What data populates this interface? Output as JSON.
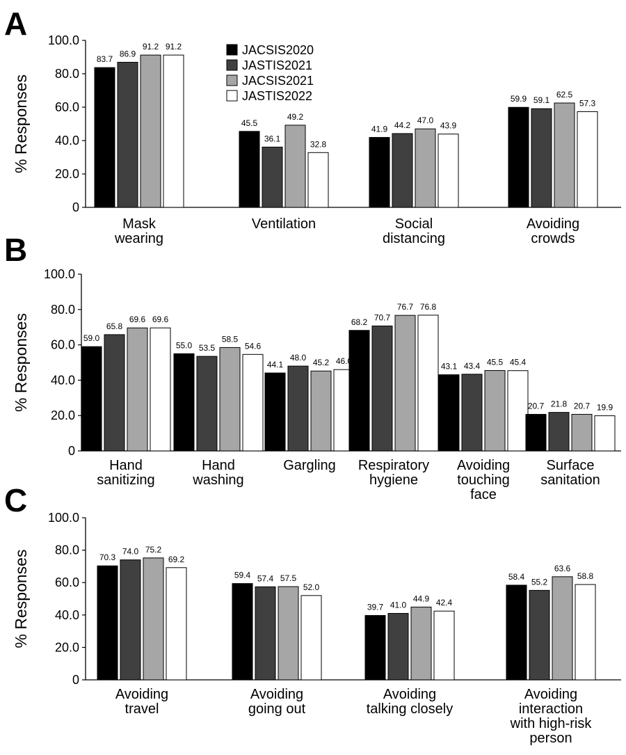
{
  "figure": {
    "panel_letters": [
      "A",
      "B",
      "C"
    ]
  },
  "chart_data": [
    {
      "type": "bar",
      "panel": "A",
      "ylabel": "% Responses",
      "ylim": [
        0,
        100
      ],
      "yticks": [
        "0",
        "20.0",
        "40.0",
        "60.0",
        "80.0",
        "100.0"
      ],
      "legend": {
        "placement": "top-center",
        "entries": [
          "JACSIS2020",
          "JASTIS2021",
          "JACSIS2021",
          "JASTIS2022"
        ]
      },
      "categories": [
        [
          "Mask",
          "wearing"
        ],
        [
          "Ventilation"
        ],
        [
          "Social",
          "distancing"
        ],
        [
          "Avoiding",
          "crowds"
        ]
      ],
      "series": [
        {
          "name": "JACSIS2020",
          "color": "#000000",
          "values": [
            83.7,
            45.5,
            41.9,
            59.9
          ],
          "labels": [
            "83.7",
            "45.5",
            "41.9",
            "59.9"
          ]
        },
        {
          "name": "JASTIS2021",
          "color": "#404040",
          "values": [
            86.9,
            36.1,
            44.2,
            59.1
          ],
          "labels": [
            "86.9",
            "36.1",
            "44.2",
            "59.1"
          ]
        },
        {
          "name": "JACSIS2021",
          "color": "#a6a6a6",
          "values": [
            91.2,
            49.2,
            47.0,
            62.5
          ],
          "labels": [
            "91.2",
            "49.2",
            "47.0",
            "62.5"
          ]
        },
        {
          "name": "JASTIS2022",
          "color": "#ffffff",
          "values": [
            91.2,
            32.8,
            43.9,
            57.3
          ],
          "labels": [
            "91.2",
            "32.8",
            "43.9",
            "57.3"
          ]
        }
      ]
    },
    {
      "type": "bar",
      "panel": "B",
      "ylabel": "% Responses",
      "ylim": [
        0,
        100
      ],
      "yticks": [
        "0",
        "20.0",
        "40.0",
        "60.0",
        "80.0",
        "100.0"
      ],
      "categories": [
        [
          "Hand",
          "sanitizing"
        ],
        [
          "Hand",
          "washing"
        ],
        [
          "Gargling"
        ],
        [
          "Respiratory",
          "hygiene"
        ],
        [
          "Avoiding",
          "touching",
          "face"
        ],
        [
          "Surface",
          "sanitation"
        ]
      ],
      "series": [
        {
          "name": "JACSIS2020",
          "color": "#000000",
          "values": [
            59.0,
            55.0,
            44.1,
            68.2,
            43.1,
            20.7
          ],
          "labels": [
            "59.0",
            "55.0",
            "44.1",
            "68.2",
            "43.1",
            "20.7"
          ]
        },
        {
          "name": "JASTIS2021",
          "color": "#404040",
          "values": [
            65.8,
            53.5,
            48.0,
            70.7,
            43.4,
            21.8
          ],
          "labels": [
            "65.8",
            "53.5",
            "48.0",
            "70.7",
            "43.4",
            "21.8"
          ]
        },
        {
          "name": "JACSIS2021",
          "color": "#a6a6a6",
          "values": [
            69.6,
            58.5,
            45.2,
            76.7,
            45.5,
            20.7
          ],
          "labels": [
            "69.6",
            "58.5",
            "45.2",
            "76.7",
            "45.5",
            "20.7"
          ]
        },
        {
          "name": "JASTIS2022",
          "color": "#ffffff",
          "values": [
            69.6,
            54.6,
            46.0,
            76.8,
            45.4,
            19.9
          ],
          "labels": [
            "69.6",
            "54.6",
            "46.0",
            "76.8",
            "45.4",
            "19.9"
          ]
        }
      ]
    },
    {
      "type": "bar",
      "panel": "C",
      "ylabel": "% Responses",
      "ylim": [
        0,
        100
      ],
      "yticks": [
        "0",
        "20.0",
        "40.0",
        "60.0",
        "80.0",
        "100.0"
      ],
      "categories": [
        [
          "Avoiding",
          "travel"
        ],
        [
          "Avoiding",
          "going out"
        ],
        [
          "Avoiding",
          "talking closely"
        ],
        [
          "Avoiding",
          "interaction",
          "with high-risk",
          "person"
        ]
      ],
      "series": [
        {
          "name": "JACSIS2020",
          "color": "#000000",
          "values": [
            70.3,
            59.4,
            39.7,
            58.4
          ],
          "labels": [
            "70.3",
            "59.4",
            "39.7",
            "58.4"
          ]
        },
        {
          "name": "JASTIS2021",
          "color": "#404040",
          "values": [
            74.0,
            57.4,
            41.0,
            55.2
          ],
          "labels": [
            "74.0",
            "57.4",
            "41.0",
            "55.2"
          ]
        },
        {
          "name": "JACSIS2021",
          "color": "#a6a6a6",
          "values": [
            75.2,
            57.5,
            44.9,
            63.6
          ],
          "labels": [
            "75.2",
            "57.5",
            "44.9",
            "63.6"
          ]
        },
        {
          "name": "JASTIS2022",
          "color": "#ffffff",
          "values": [
            69.2,
            52.0,
            42.4,
            58.8
          ],
          "labels": [
            "69.2",
            "52.0",
            "42.4",
            "58.8"
          ]
        }
      ]
    }
  ]
}
